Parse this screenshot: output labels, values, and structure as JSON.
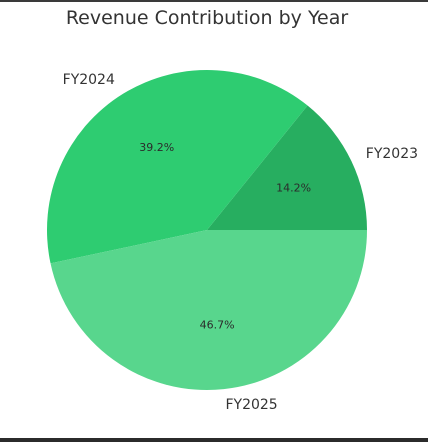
{
  "chart_data": {
    "type": "pie",
    "title": "Revenue Contribution by Year",
    "categories": [
      "FY2023",
      "FY2024",
      "FY2025"
    ],
    "values": [
      14.2,
      39.2,
      46.7
    ],
    "value_labels": [
      "14.2%",
      "39.2%",
      "46.7%"
    ],
    "colors": [
      "#27ae60",
      "#2ecc71",
      "#58d68d"
    ],
    "start_angle_deg": 0,
    "direction": "counterclockwise"
  }
}
